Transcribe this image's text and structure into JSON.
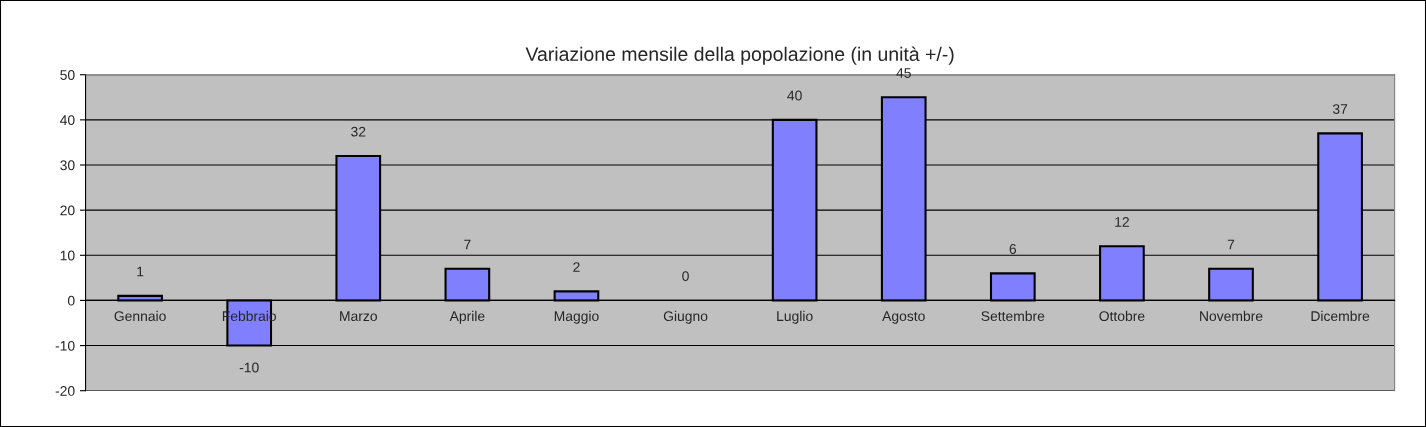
{
  "chart_data": {
    "type": "bar",
    "title": "Variazione mensile della popolazione (in unità +/-)",
    "categories": [
      "Gennaio",
      "Febbraio",
      "Marzo",
      "Aprile",
      "Maggio",
      "Giugno",
      "Luglio",
      "Agosto",
      "Settembre",
      "Ottobre",
      "Novembre",
      "Dicembre"
    ],
    "values": [
      1,
      -10,
      32,
      7,
      2,
      0,
      40,
      45,
      6,
      12,
      7,
      37
    ],
    "color": "#8080ff",
    "ylim": [
      -20,
      50
    ],
    "yticks": [
      -20,
      -10,
      0,
      10,
      20,
      30,
      40,
      50
    ],
    "grid": "y",
    "data_labels": true
  }
}
